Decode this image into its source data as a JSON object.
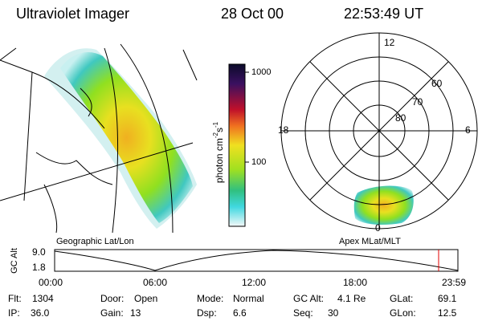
{
  "header": {
    "instrument": "Ultraviolet Imager",
    "date": "28 Oct 00",
    "time": "22:53:49 UT"
  },
  "colorbar": {
    "unit_main": "photon cm",
    "exp1": "-2",
    "unit_mid": "s",
    "exp2": "-1",
    "ticks": [
      "1000",
      "100"
    ]
  },
  "geo_panel": {
    "caption": "Geographic Lat/Lon"
  },
  "polar_panel": {
    "caption": "Apex MLat/MLT",
    "mlt_labels": [
      "12",
      "18",
      "6",
      "0"
    ],
    "lat_labels": [
      "60",
      "70",
      "80"
    ]
  },
  "altitude_plot": {
    "axis_label": "GC Alt",
    "y_labels": [
      "9.0",
      "1.8"
    ],
    "x_labels": [
      "00:00",
      "06:00",
      "12:00",
      "18:00",
      "23:59"
    ]
  },
  "info": [
    [
      {
        "label": "Flt:",
        "value": "1304"
      },
      {
        "label": "Door:",
        "value": "Open"
      },
      {
        "label": "Mode:",
        "value": "Normal"
      },
      {
        "label": "GC Alt:",
        "value": "4.1 Re"
      },
      {
        "label": "GLat:",
        "value": "69.1"
      }
    ],
    [
      {
        "label": "IP:",
        "value": "36.0"
      },
      {
        "label": "Gain:",
        "value": "13"
      },
      {
        "label": "Dsp:",
        "value": "6.6"
      },
      {
        "label": "Seq:",
        "value": "30"
      },
      {
        "label": "GLon:",
        "value": "12.5"
      }
    ]
  ]
}
